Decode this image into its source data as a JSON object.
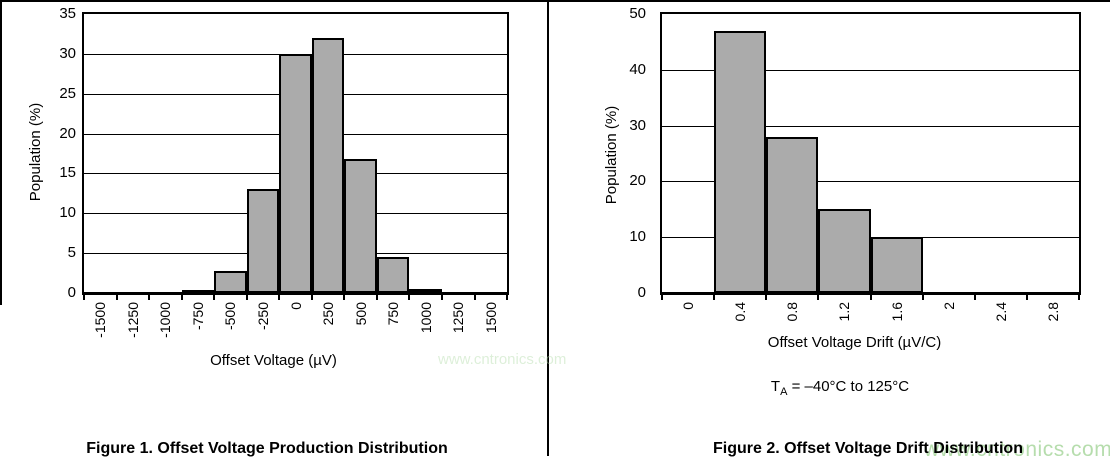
{
  "watermark": {
    "text": "www.cntronics.com",
    "color": "#b6ddad"
  },
  "chart_data": [
    {
      "type": "bar",
      "caption": "Figure 1. Offset Voltage Production Distribution",
      "xlabel": "Offset Voltage (µV)",
      "ylabel": "Population (%)",
      "categories": [
        "-1500",
        "-1250",
        "-1000",
        "-750",
        "-500",
        "-250",
        "0",
        "250",
        "500",
        "750",
        "1000",
        "1250",
        "1500"
      ],
      "values": [
        0,
        0,
        0,
        0.2,
        2.8,
        13,
        30,
        32,
        16.8,
        4.5,
        0.5,
        0,
        0
      ],
      "ylim": [
        0,
        35
      ],
      "yticks": [
        0,
        5,
        10,
        15,
        20,
        25,
        30,
        35
      ],
      "grid": true,
      "legend": "none",
      "bar_color": "#ababab",
      "bar_border_color": "#000000",
      "x_tick_label_rotation_deg": 90
    },
    {
      "type": "bar",
      "caption": "Figure 2. Offset Voltage Drift Distribution",
      "xlabel": "Offset Voltage Drift (µV/C)",
      "ylabel": "Population (%)",
      "categories": [
        "0",
        "0.4",
        "0.8",
        "1.2",
        "1.6",
        "2",
        "2.4",
        "2.8"
      ],
      "values": [
        0,
        47,
        28,
        15,
        10,
        0,
        0,
        0
      ],
      "ylim": [
        0,
        50
      ],
      "yticks": [
        0,
        10,
        20,
        30,
        40,
        50
      ],
      "grid": true,
      "legend": "none",
      "bar_color": "#ababab",
      "bar_border_color": "#000000",
      "x_tick_label_rotation_deg": 90,
      "condition": {
        "pre": "T",
        "sub": "A",
        "post": " = –40°C to 125°C"
      }
    }
  ]
}
